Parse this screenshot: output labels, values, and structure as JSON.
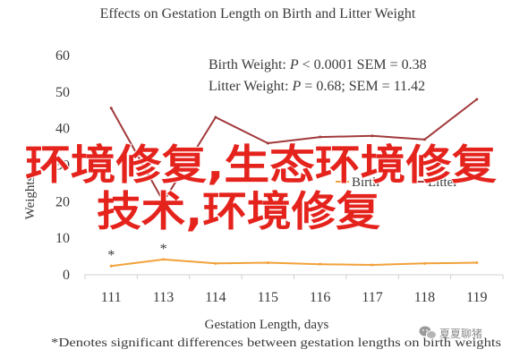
{
  "chart_data": {
    "type": "line",
    "title": "Effects on Gestation Length on Birth and Litter Weight",
    "xlabel": "Gestation Length, days",
    "ylabel": "Weights",
    "categories": [
      "111",
      "113",
      "114",
      "115",
      "116",
      "117",
      "118",
      "119"
    ],
    "ylim": [
      0,
      60
    ],
    "yticks": [
      0,
      10,
      20,
      30,
      40,
      50,
      60
    ],
    "grid": false,
    "legend_position": "right, inside plot",
    "series": [
      {
        "name": "Birth",
        "color": "#f2a13a",
        "values": [
          2.4,
          4.2,
          3.1,
          3.3,
          2.9,
          2.7,
          3.1,
          3.3
        ]
      },
      {
        "name": "Litter",
        "color": "#a2393b",
        "values": [
          45.6,
          20.0,
          43.1,
          36.0,
          37.7,
          38.0,
          37.0,
          48.0
        ]
      }
    ],
    "annotations": [
      {
        "label": "Birth Weight: ",
        "symbol": "P",
        "rest": " < 0.0001 SEM = 0.38"
      },
      {
        "label": "Litter Weight: ",
        "symbol": "P",
        "rest": " = 0.68; SEM = 11.42"
      }
    ],
    "significance_markers": [
      {
        "category_index": 0,
        "series": "Birth",
        "text": "*"
      },
      {
        "category_index": 1,
        "series": "Birth",
        "text": "*"
      }
    ],
    "footnote": "*Denotes significant differences between gestation lengths on birth weights"
  },
  "overlay": {
    "color": "#e5231d",
    "lines": [
      "环境修复,生态环境修复",
      "技术,环境修复"
    ]
  },
  "watermark": {
    "icon": "wechat-icon",
    "text": "夏夏聊猪"
  }
}
